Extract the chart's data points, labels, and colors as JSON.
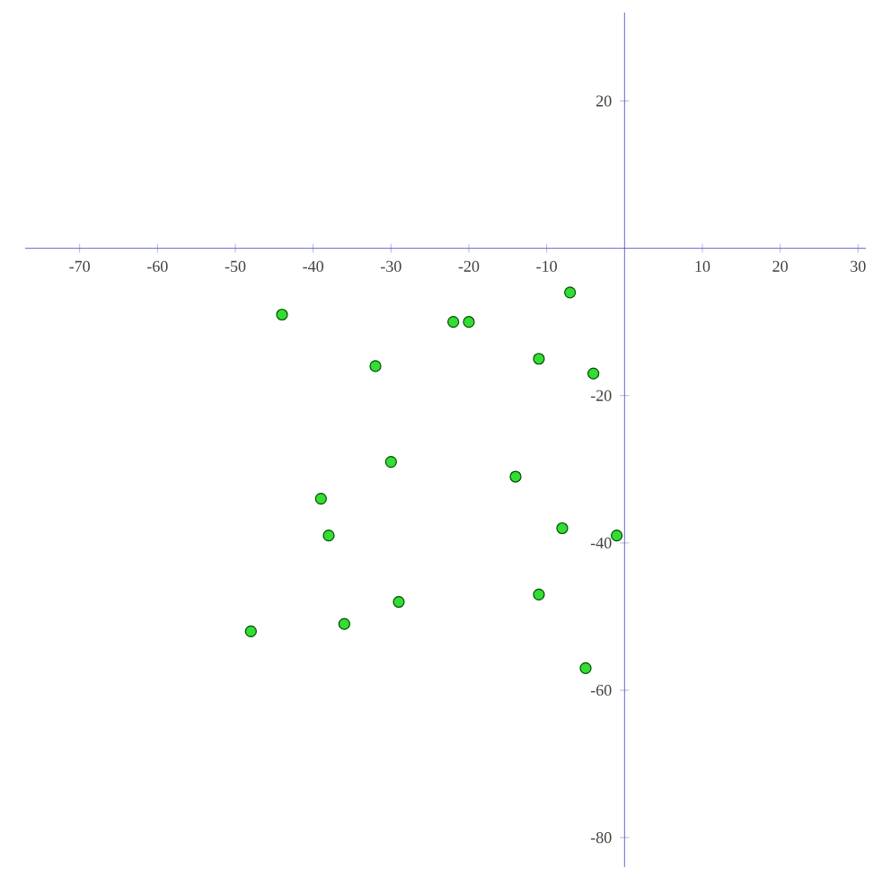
{
  "chart_data": {
    "type": "scatter",
    "x": [
      -7,
      -44,
      -22,
      -20,
      -11,
      -4,
      -32,
      -30,
      -14,
      -39,
      -38,
      -8,
      -1,
      -29,
      -11,
      -36,
      -48,
      -5
    ],
    "values": [
      -6,
      -9,
      -10,
      -10,
      -15,
      -17,
      -16,
      -29,
      -31,
      -34,
      -39,
      -38,
      -39,
      -48,
      -47,
      -51,
      -52,
      -57
    ],
    "color": "#33dd33",
    "marker": "circle",
    "xlim": [
      -77,
      31
    ],
    "ylim": [
      -84,
      32
    ],
    "xticks": [
      -70,
      -60,
      -50,
      -40,
      -30,
      -20,
      -10,
      10,
      20,
      30
    ],
    "yticks": [
      20,
      -20,
      -40,
      -60,
      -80
    ]
  }
}
